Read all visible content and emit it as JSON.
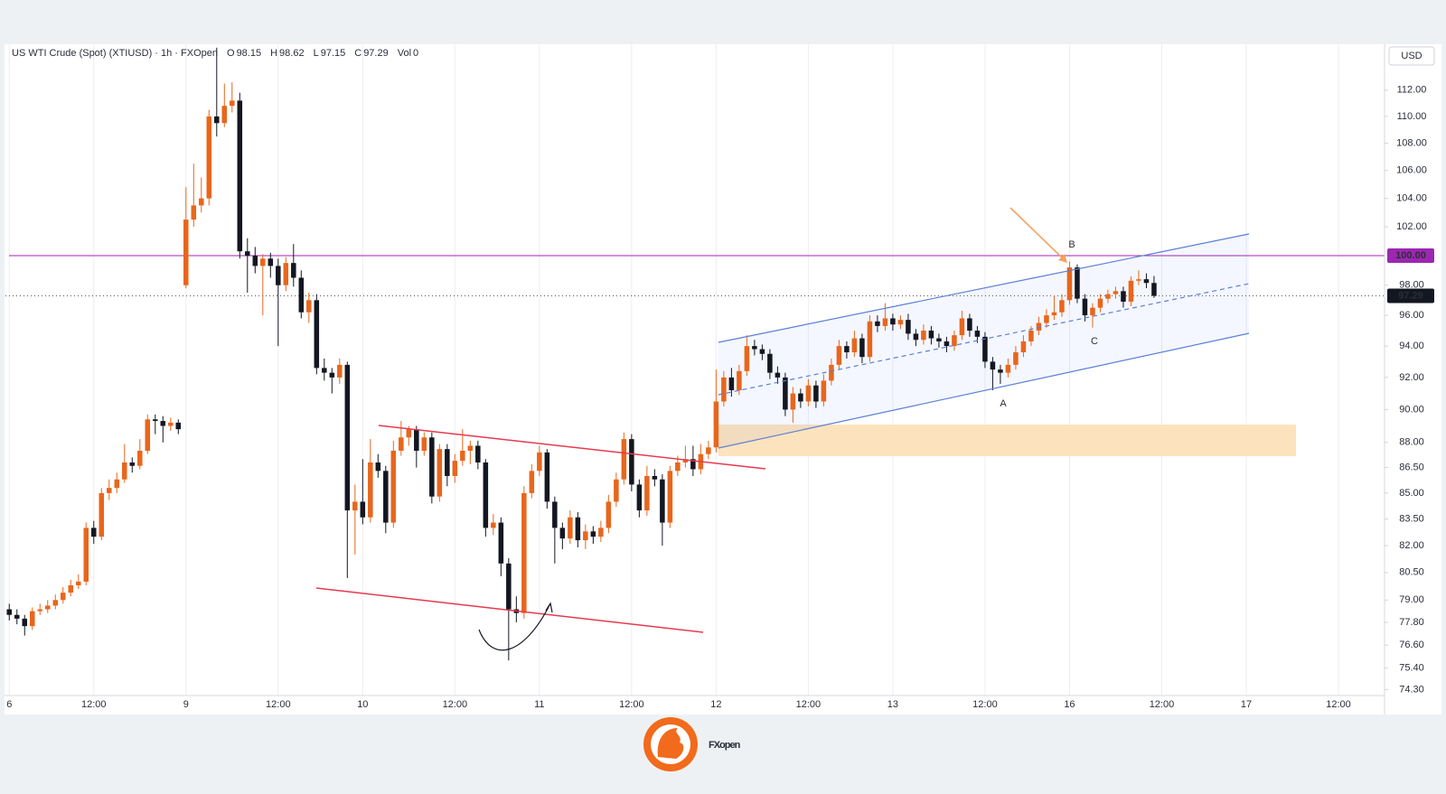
{
  "header": {
    "title": "US WTI Crude (Spot) (XTIUSD) · 1h · FXOpen",
    "fields": [
      "O",
      "H",
      "L",
      "C"
    ],
    "volume_label": "Vol",
    "volume": 0
  },
  "chart_data": {
    "type": "candlestick",
    "currency": "USD",
    "open": [
      78.5,
      78.2,
      78.0,
      77.6,
      78.4,
      78.5,
      78.7,
      79.0,
      79.4,
      79.8,
      80.0,
      83.0,
      82.5,
      85.0,
      85.3,
      85.8,
      86.8,
      86.6,
      87.5,
      89.4,
      89.3,
      89.0,
      89.2,
      98.0,
      102.5,
      103.5,
      104.0,
      110.0,
      109.5,
      110.8,
      111.2,
      100.3,
      100.0,
      99.3,
      99.8,
      99.3,
      98.0,
      99.5,
      98.5,
      96.2,
      97.0,
      92.6,
      92.3,
      92.0,
      92.8,
      84.0,
      84.5,
      83.6,
      86.8,
      86.3,
      83.3,
      87.5,
      88.3,
      88.8,
      87.5,
      88.3,
      84.8,
      87.6,
      86.0,
      86.9,
      87.5,
      87.8,
      86.8,
      83.0,
      83.3,
      81.0,
      78.5,
      78.3,
      85.0,
      86.3,
      87.4,
      84.5,
      83.0,
      82.4,
      83.6,
      82.3,
      82.8,
      82.5,
      83.0,
      84.5,
      85.8,
      88.2,
      85.5,
      84.0,
      86.0,
      85.8,
      83.3,
      86.3,
      86.8,
      87.0,
      86.4,
      87.3,
      87.7,
      90.5,
      92.0,
      91.2,
      92.4,
      94.0,
      93.8,
      93.5,
      92.3,
      92.0,
      90.0,
      91.0,
      90.5,
      91.5,
      90.5,
      91.8,
      92.8,
      94.0,
      93.6,
      94.5,
      93.3,
      95.6,
      95.3,
      95.8,
      95.4,
      95.7,
      94.8,
      94.4,
      95.0,
      94.5,
      94.3,
      94.0,
      94.7,
      95.8,
      95.0,
      94.6,
      93.0,
      92.5,
      92.3,
      92.8,
      93.6,
      94.3,
      95.0,
      95.5,
      96.0,
      96.2,
      97.0,
      99.2,
      97.1,
      96.0,
      96.5,
      97.1,
      97.4,
      97.6,
      96.9,
      98.3,
      98.4,
      98.15
    ],
    "high": [
      78.8,
      78.5,
      78.2,
      78.6,
      78.8,
      79.0,
      79.3,
      79.7,
      80.1,
      80.4,
      83.3,
      83.4,
      85.3,
      85.8,
      86.2,
      87.9,
      87.1,
      88.2,
      89.7,
      89.7,
      89.6,
      89.5,
      89.4,
      104.8,
      106.5,
      105.5,
      110.5,
      115.3,
      112.5,
      112.6,
      111.8,
      101.2,
      100.6,
      100.1,
      100.2,
      99.8,
      99.9,
      100.8,
      99.0,
      97.5,
      97.4,
      93.2,
      92.6,
      93.2,
      93.0,
      85.5,
      87.0,
      88.2,
      87.3,
      86.6,
      88.1,
      89.3,
      89.0,
      89.0,
      88.6,
      88.6,
      87.9,
      87.9,
      87.3,
      88.8,
      88.1,
      88.1,
      87.0,
      83.8,
      83.6,
      81.3,
      79.2,
      85.4,
      86.7,
      87.8,
      87.6,
      84.8,
      83.3,
      84.0,
      83.9,
      83.2,
      83.1,
      83.4,
      84.9,
      86.2,
      88.6,
      88.5,
      85.8,
      86.6,
      86.4,
      86.1,
      86.6,
      87.2,
      87.8,
      87.8,
      87.9,
      88.1,
      92.5,
      92.4,
      92.6,
      92.8,
      94.7,
      94.4,
      94.1,
      93.8,
      92.7,
      92.3,
      91.4,
      91.3,
      91.9,
      91.8,
      92.2,
      93.2,
      94.4,
      94.3,
      95.0,
      94.8,
      96.0,
      96.0,
      96.8,
      96.1,
      96.0,
      96.1,
      95.1,
      95.4,
      95.3,
      94.8,
      94.6,
      95.0,
      96.3,
      96.1,
      95.3,
      94.9,
      93.3,
      92.8,
      93.2,
      94.0,
      94.7,
      95.3,
      95.9,
      96.4,
      97.3,
      97.4,
      99.6,
      99.4,
      97.4,
      96.8,
      97.4,
      97.7,
      97.9,
      97.9,
      98.6,
      99.0,
      98.8,
      98.62
    ],
    "low": [
      77.9,
      77.7,
      77.1,
      77.4,
      78.2,
      78.3,
      78.5,
      78.8,
      79.2,
      79.6,
      79.8,
      82.1,
      82.3,
      84.6,
      85.0,
      85.6,
      86.2,
      86.4,
      87.3,
      88.5,
      88.0,
      88.7,
      88.5,
      97.8,
      102.0,
      103.0,
      103.5,
      108.5,
      109.2,
      110.3,
      99.8,
      97.5,
      98.8,
      96.0,
      98.5,
      94.0,
      97.6,
      97.9,
      95.8,
      95.5,
      92.2,
      91.8,
      91.0,
      91.6,
      80.2,
      81.5,
      83.2,
      83.3,
      85.9,
      82.7,
      83.0,
      87.2,
      87.8,
      86.5,
      87.2,
      84.4,
      84.5,
      85.4,
      85.6,
      86.6,
      86.7,
      86.4,
      82.5,
      82.6,
      80.3,
      75.8,
      77.8,
      78.0,
      84.7,
      86.0,
      84.1,
      81.0,
      81.8,
      82.1,
      81.9,
      81.8,
      82.1,
      82.2,
      82.7,
      84.2,
      85.5,
      85.1,
      83.6,
      83.7,
      85.4,
      82.0,
      83.0,
      86.0,
      86.5,
      86.0,
      86.1,
      87.0,
      87.4,
      90.2,
      90.8,
      90.9,
      92.1,
      93.4,
      93.1,
      91.9,
      91.6,
      89.6,
      89.2,
      90.1,
      90.2,
      90.1,
      90.2,
      91.5,
      92.5,
      93.2,
      93.3,
      92.9,
      93.0,
      94.9,
      95.0,
      95.0,
      95.1,
      94.4,
      94.0,
      94.1,
      94.1,
      93.9,
      93.6,
      93.7,
      94.4,
      94.6,
      94.2,
      92.6,
      91.2,
      91.6,
      92.0,
      92.5,
      93.3,
      94.0,
      94.7,
      95.2,
      95.7,
      95.9,
      96.7,
      96.8,
      95.6,
      95.2,
      96.2,
      96.8,
      97.1,
      96.5,
      96.6,
      98.0,
      97.8,
      97.15
    ],
    "close": [
      78.2,
      78.0,
      77.6,
      78.4,
      78.5,
      78.7,
      79.0,
      79.4,
      79.8,
      80.0,
      83.0,
      82.5,
      85.0,
      85.3,
      85.8,
      86.8,
      86.6,
      87.5,
      89.4,
      89.3,
      89.0,
      89.2,
      88.8,
      102.5,
      103.5,
      104.0,
      110.0,
      109.5,
      110.8,
      111.2,
      100.3,
      100.0,
      99.3,
      99.8,
      99.3,
      98.0,
      99.5,
      98.5,
      96.2,
      97.0,
      92.6,
      92.3,
      92.0,
      92.8,
      84.0,
      84.5,
      83.6,
      86.8,
      86.3,
      83.3,
      87.5,
      88.3,
      88.8,
      87.5,
      88.3,
      84.8,
      87.6,
      86.0,
      86.9,
      87.5,
      87.8,
      86.8,
      83.0,
      83.3,
      81.0,
      78.5,
      78.3,
      85.0,
      86.3,
      87.4,
      84.5,
      83.0,
      82.4,
      83.6,
      82.3,
      82.8,
      82.5,
      83.0,
      84.5,
      85.8,
      88.2,
      85.5,
      84.0,
      86.0,
      85.8,
      83.3,
      86.3,
      86.8,
      87.0,
      86.4,
      87.3,
      87.7,
      90.5,
      92.0,
      91.2,
      92.4,
      94.0,
      93.8,
      93.5,
      92.3,
      92.0,
      90.0,
      91.0,
      90.5,
      91.5,
      90.5,
      91.8,
      92.8,
      94.0,
      93.6,
      94.5,
      93.3,
      95.6,
      95.3,
      95.8,
      95.4,
      95.7,
      94.8,
      94.4,
      95.0,
      94.5,
      94.3,
      94.0,
      94.7,
      95.8,
      95.0,
      94.6,
      93.0,
      92.5,
      92.3,
      92.8,
      93.6,
      94.3,
      95.0,
      95.5,
      96.0,
      96.2,
      97.0,
      99.2,
      97.1,
      96.0,
      96.5,
      97.1,
      97.4,
      97.6,
      96.9,
      98.3,
      98.4,
      98.15,
      97.29
    ],
    "up_color": "#e8661c",
    "down_color": "#131722",
    "log_scale": true,
    "grid": "vertical",
    "ylim": [
      74,
      115.5
    ],
    "yticks": [
      {
        "value": 112,
        "label": "112.00"
      },
      {
        "value": 110,
        "label": "110.00"
      },
      {
        "value": 108,
        "label": "108.00"
      },
      {
        "value": 106,
        "label": "106.00"
      },
      {
        "value": 104,
        "label": "104.00"
      },
      {
        "value": 102,
        "label": "102.00"
      },
      {
        "value": 98,
        "label": "98.00"
      },
      {
        "value": 96,
        "label": "96.00"
      },
      {
        "value": 94,
        "label": "94.00"
      },
      {
        "value": 92,
        "label": "92.00"
      },
      {
        "value": 90,
        "label": "90.00"
      },
      {
        "value": 88,
        "label": "88.00"
      },
      {
        "value": 86.5,
        "label": "86.50"
      },
      {
        "value": 85,
        "label": "85.00"
      },
      {
        "value": 83.5,
        "label": "83.50"
      },
      {
        "value": 82,
        "label": "82.00"
      },
      {
        "value": 80.5,
        "label": "80.50"
      },
      {
        "value": 79,
        "label": "79.00"
      },
      {
        "value": 77.8,
        "label": "77.80"
      },
      {
        "value": 76.6,
        "label": "76.60"
      },
      {
        "value": 75.4,
        "label": "75.40"
      },
      {
        "value": 74.3,
        "label": "74.30"
      }
    ],
    "xlim": [
      -0.5,
      179
    ],
    "xticks": [
      {
        "value": 0,
        "label": "6"
      },
      {
        "value": 11,
        "label": "12:00"
      },
      {
        "value": 23,
        "label": "9"
      },
      {
        "value": 35,
        "label": "12:00"
      },
      {
        "value": 46,
        "label": "10"
      },
      {
        "value": 58,
        "label": "12:00"
      },
      {
        "value": 69,
        "label": "11"
      },
      {
        "value": 81,
        "label": "12:00"
      },
      {
        "value": 92,
        "label": "12"
      },
      {
        "value": 104,
        "label": "12:00"
      },
      {
        "value": 115,
        "label": "13"
      },
      {
        "value": 127,
        "label": "12:00"
      },
      {
        "value": 138,
        "label": "16"
      },
      {
        "value": 150,
        "label": "12:00"
      },
      {
        "value": 161,
        "label": "17"
      },
      {
        "value": 173,
        "label": "12:00"
      }
    ],
    "level_line": {
      "value": 100,
      "label": "100.00",
      "color": "#9c27b0"
    },
    "annotations": [
      "A",
      "B",
      "C"
    ]
  },
  "logo": "FXopen"
}
